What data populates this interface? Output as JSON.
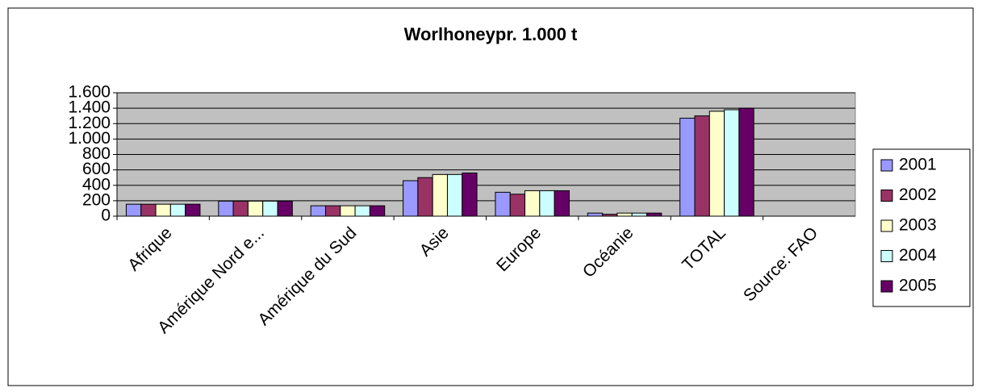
{
  "chart_data": {
    "type": "bar",
    "title": "Worlhoneypr. 1.000 t",
    "categories": [
      "Afrique",
      "Amérique Nord e...",
      "Amérique du Sud",
      "Asie",
      "Europe",
      "Océanie",
      "TOTAL",
      "Source: FAO"
    ],
    "series": [
      {
        "name": "2001",
        "color": "#9999ff",
        "values": [
          155,
          195,
          135,
          460,
          310,
          40,
          1270,
          null
        ]
      },
      {
        "name": "2002",
        "color": "#993366",
        "values": [
          155,
          195,
          135,
          500,
          285,
          25,
          1300,
          null
        ]
      },
      {
        "name": "2003",
        "color": "#ffffcc",
        "values": [
          155,
          195,
          135,
          540,
          330,
          40,
          1360,
          null
        ]
      },
      {
        "name": "2004",
        "color": "#ccffff",
        "values": [
          155,
          195,
          135,
          540,
          330,
          40,
          1380,
          null
        ]
      },
      {
        "name": "2005",
        "color": "#660066",
        "values": [
          155,
          195,
          135,
          560,
          330,
          40,
          1400,
          null
        ]
      }
    ],
    "ylim": [
      0,
      1600
    ],
    "yticks": [
      0,
      200,
      400,
      600,
      800,
      {
        "value": 1000,
        "label": "1.000"
      },
      {
        "value": 1200,
        "label": "1.200"
      },
      {
        "value": 1400,
        "label": "1.400"
      },
      {
        "value": 1600,
        "label": "1.600"
      }
    ],
    "grid": true,
    "legend": "right",
    "plot_background": "#c0c0c0"
  }
}
